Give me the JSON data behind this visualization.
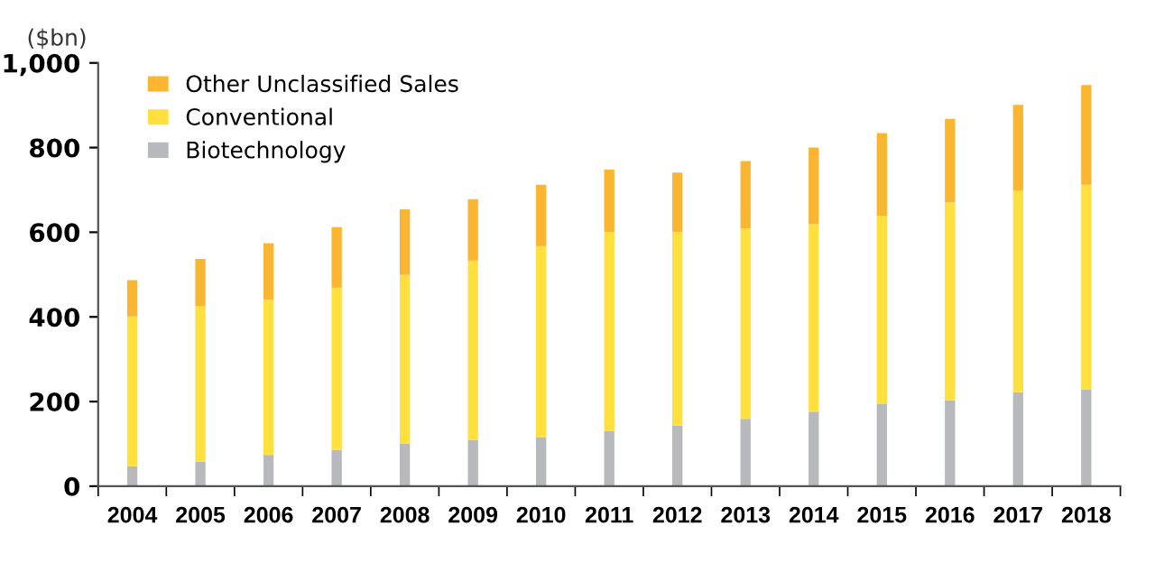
{
  "chart_data": {
    "type": "bar",
    "stacked": true,
    "ylabel": "($bn)",
    "categories": [
      "2004",
      "2005",
      "2006",
      "2007",
      "2008",
      "2009",
      "2010",
      "2011",
      "2012",
      "2013",
      "2014",
      "2015",
      "2016",
      "2017",
      "2018"
    ],
    "series": [
      {
        "name": "Biotechnology",
        "color": "#b8b9bd",
        "values": [
          47,
          58,
          74,
          86,
          101,
          109,
          116,
          130,
          143,
          159,
          176,
          194,
          203,
          222,
          229
        ]
      },
      {
        "name": "Conventional",
        "color": "#ffe03c",
        "values": [
          354,
          367,
          366,
          383,
          398,
          424,
          451,
          471,
          458,
          450,
          443,
          445,
          467,
          476,
          483
        ]
      },
      {
        "name": "Other Unclassified Sales",
        "color": "#fbb631",
        "values": [
          86,
          112,
          134,
          143,
          155,
          145,
          145,
          147,
          140,
          159,
          181,
          195,
          198,
          203,
          236
        ]
      }
    ],
    "ylim": [
      0,
      1000
    ],
    "yticks": [
      0,
      200,
      400,
      600,
      800,
      {
        "value": 1000,
        "label": "1,000"
      }
    ],
    "grid": false,
    "legend": "top left"
  }
}
